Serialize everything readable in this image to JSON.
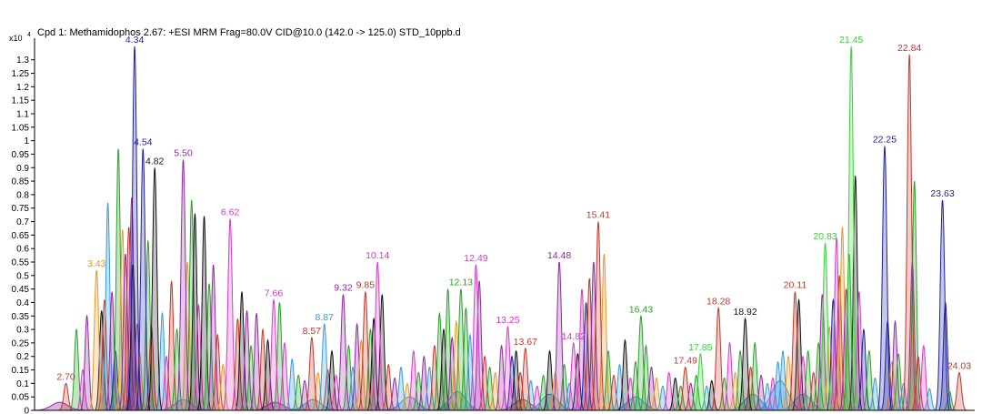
{
  "chart_data": {
    "type": "line",
    "title": "Cpd 1: Methamidophos 2.67: +ESI MRM Frag=80.0V CID@10.0 (142.0 -> 125.0) STD_10ppb.d",
    "y_multiplier": "x10",
    "y_multiplier_exp": "4",
    "xlim": [
      1.95,
      24.4
    ],
    "ylim": [
      0,
      1.38
    ],
    "x_axis_shown": false,
    "grid": false,
    "legend": "none",
    "y_ticks": [
      0,
      0.05,
      0.1,
      0.15,
      0.2,
      0.25,
      0.3,
      0.35,
      0.4,
      0.45,
      0.5,
      0.55,
      0.6,
      0.65,
      0.7,
      0.75,
      0.8,
      0.85,
      0.9,
      0.95,
      1,
      1.05,
      1.1,
      1.15,
      1.2,
      1.25,
      1.3
    ],
    "y_tick_labels": [
      "0",
      "0.05",
      "0.1",
      "0.15",
      "0.2",
      "0.25",
      "0.3",
      "0.35",
      "0.4",
      "0.45",
      "0.5",
      "0.55",
      "0.6",
      "0.65",
      "0.7",
      "0.75",
      "0.8",
      "0.85",
      "0.9",
      "0.95",
      "1",
      "1.05",
      "1.1",
      "1.15",
      "1.2",
      "1.25",
      "1.3"
    ],
    "labeled_peaks": [
      {
        "label": "2.70",
        "x": 2.7,
        "y": 0.1,
        "color": "#c0392b"
      },
      {
        "label": "3.43",
        "x": 3.43,
        "y": 0.52,
        "color": "#e69a2e"
      },
      {
        "label": "4.34",
        "x": 4.34,
        "y": 1.35,
        "color": "#1f1fa0"
      },
      {
        "label": "4.54",
        "x": 4.54,
        "y": 0.97,
        "color": "#1f1fa0"
      },
      {
        "label": "4.82",
        "x": 4.82,
        "y": 0.9,
        "color": "#111111"
      },
      {
        "label": "5.50",
        "x": 5.5,
        "y": 0.93,
        "color": "#8e2c9e"
      },
      {
        "label": "6.62",
        "x": 6.62,
        "y": 0.71,
        "color": "#d63cc7"
      },
      {
        "label": "7.66",
        "x": 7.66,
        "y": 0.41,
        "color": "#d63cc7"
      },
      {
        "label": "8.57",
        "x": 8.57,
        "y": 0.27,
        "color": "#c0392b"
      },
      {
        "label": "8.87",
        "x": 8.87,
        "y": 0.32,
        "color": "#3a9ad9"
      },
      {
        "label": "9.32",
        "x": 9.32,
        "y": 0.43,
        "color": "#8e2c9e"
      },
      {
        "label": "9.85",
        "x": 9.85,
        "y": 0.44,
        "color": "#c0392b"
      },
      {
        "label": "10.14",
        "x": 10.14,
        "y": 0.55,
        "color": "#d63cc7"
      },
      {
        "label": "12.13",
        "x": 12.13,
        "y": 0.45,
        "color": "#2ca02c"
      },
      {
        "label": "12.49",
        "x": 12.49,
        "y": 0.54,
        "color": "#d63cc7"
      },
      {
        "label": "13.25",
        "x": 13.25,
        "y": 0.31,
        "color": "#d63cc7"
      },
      {
        "label": "13.67",
        "x": 13.67,
        "y": 0.23,
        "color": "#c0392b"
      },
      {
        "label": "14.48",
        "x": 14.48,
        "y": 0.55,
        "color": "#8e2c9e"
      },
      {
        "label": "14.82",
        "x": 14.82,
        "y": 0.25,
        "color": "#d63cc7"
      },
      {
        "label": "15.41",
        "x": 15.41,
        "y": 0.7,
        "color": "#c0392b"
      },
      {
        "label": "16.43",
        "x": 16.43,
        "y": 0.35,
        "color": "#2ca02c"
      },
      {
        "label": "17.49",
        "x": 17.49,
        "y": 0.16,
        "color": "#c0392b"
      },
      {
        "label": "17.85",
        "x": 17.85,
        "y": 0.21,
        "color": "#3cd13c"
      },
      {
        "label": "18.28",
        "x": 18.28,
        "y": 0.38,
        "color": "#c0392b"
      },
      {
        "label": "18.92",
        "x": 18.92,
        "y": 0.34,
        "color": "#111111"
      },
      {
        "label": "20.11",
        "x": 20.11,
        "y": 0.44,
        "color": "#c0392b"
      },
      {
        "label": "20.83",
        "x": 20.83,
        "y": 0.62,
        "color": "#3cd13c"
      },
      {
        "label": "21.45",
        "x": 21.45,
        "y": 1.35,
        "color": "#3cd13c"
      },
      {
        "label": "22.25",
        "x": 22.25,
        "y": 0.98,
        "color": "#1f1fa0"
      },
      {
        "label": "22.84",
        "x": 22.84,
        "y": 1.32,
        "color": "#c0392b"
      },
      {
        "label": "23.63",
        "x": 23.63,
        "y": 0.78,
        "color": "#1f1fa0"
      },
      {
        "label": "24.03",
        "x": 24.03,
        "y": 0.14,
        "color": "#c0392b"
      }
    ],
    "unlabeled_peaks": [
      {
        "x": 2.95,
        "y": 0.3,
        "color": "#2ca02c"
      },
      {
        "x": 3.1,
        "y": 0.15,
        "color": "#d63cc7"
      },
      {
        "x": 3.2,
        "y": 0.35,
        "color": "#8e2c9e"
      },
      {
        "x": 3.55,
        "y": 0.37,
        "color": "#111111"
      },
      {
        "x": 3.62,
        "y": 0.41,
        "color": "#c0392b"
      },
      {
        "x": 3.7,
        "y": 0.77,
        "color": "#3a9ad9"
      },
      {
        "x": 3.8,
        "y": 0.44,
        "color": "#8e2c9e"
      },
      {
        "x": 3.88,
        "y": 0.22,
        "color": "#1f1fa0"
      },
      {
        "x": 3.95,
        "y": 0.97,
        "color": "#2ca02c"
      },
      {
        "x": 4.05,
        "y": 0.67,
        "color": "#e69a2e"
      },
      {
        "x": 4.12,
        "y": 0.58,
        "color": "#8e2c9e"
      },
      {
        "x": 4.2,
        "y": 0.68,
        "color": "#c0392b"
      },
      {
        "x": 4.27,
        "y": 0.79,
        "color": "#8e2c9e"
      },
      {
        "x": 4.3,
        "y": 0.54,
        "color": "#111111"
      },
      {
        "x": 4.4,
        "y": 0.32,
        "color": "#d63cc7"
      },
      {
        "x": 4.46,
        "y": 0.21,
        "color": "#e69a2e"
      },
      {
        "x": 4.66,
        "y": 0.63,
        "color": "#2ca02c"
      },
      {
        "x": 4.74,
        "y": 0.31,
        "color": "#c0392b"
      },
      {
        "x": 5.0,
        "y": 0.36,
        "color": "#3a9ad9"
      },
      {
        "x": 5.1,
        "y": 0.2,
        "color": "#d63cc7"
      },
      {
        "x": 5.22,
        "y": 0.48,
        "color": "#c0392b"
      },
      {
        "x": 5.35,
        "y": 0.3,
        "color": "#2ca02c"
      },
      {
        "x": 5.6,
        "y": 0.55,
        "color": "#e69a2e"
      },
      {
        "x": 5.7,
        "y": 0.78,
        "color": "#2ca02c"
      },
      {
        "x": 5.78,
        "y": 0.73,
        "color": "#111111"
      },
      {
        "x": 5.87,
        "y": 0.39,
        "color": "#d63cc7"
      },
      {
        "x": 6.0,
        "y": 0.72,
        "color": "#111111"
      },
      {
        "x": 6.12,
        "y": 0.47,
        "color": "#2ca02c"
      },
      {
        "x": 6.22,
        "y": 0.54,
        "color": "#8e2c9e"
      },
      {
        "x": 6.32,
        "y": 0.28,
        "color": "#c0392b"
      },
      {
        "x": 6.45,
        "y": 0.17,
        "color": "#e69a2e"
      },
      {
        "x": 6.8,
        "y": 0.34,
        "color": "#c0392b"
      },
      {
        "x": 6.9,
        "y": 0.44,
        "color": "#111111"
      },
      {
        "x": 7.02,
        "y": 0.37,
        "color": "#8e2c9e"
      },
      {
        "x": 7.12,
        "y": 0.24,
        "color": "#2ca02c"
      },
      {
        "x": 7.25,
        "y": 0.36,
        "color": "#8e2c9e"
      },
      {
        "x": 7.4,
        "y": 0.3,
        "color": "#c0392b"
      },
      {
        "x": 7.52,
        "y": 0.26,
        "color": "#111111"
      },
      {
        "x": 7.8,
        "y": 0.4,
        "color": "#2ca02c"
      },
      {
        "x": 7.92,
        "y": 0.25,
        "color": "#d63cc7"
      },
      {
        "x": 8.1,
        "y": 0.19,
        "color": "#3a9ad9"
      },
      {
        "x": 8.25,
        "y": 0.13,
        "color": "#2ca02c"
      },
      {
        "x": 8.4,
        "y": 0.11,
        "color": "#8e2c9e"
      },
      {
        "x": 8.72,
        "y": 0.14,
        "color": "#e69a2e"
      },
      {
        "x": 8.95,
        "y": 0.15,
        "color": "#c0392b"
      },
      {
        "x": 9.05,
        "y": 0.22,
        "color": "#111111"
      },
      {
        "x": 9.15,
        "y": 0.13,
        "color": "#d63cc7"
      },
      {
        "x": 9.45,
        "y": 0.24,
        "color": "#2ca02c"
      },
      {
        "x": 9.55,
        "y": 0.16,
        "color": "#3a9ad9"
      },
      {
        "x": 9.65,
        "y": 0.32,
        "color": "#8e2c9e"
      },
      {
        "x": 9.75,
        "y": 0.26,
        "color": "#e69a2e"
      },
      {
        "x": 9.97,
        "y": 0.3,
        "color": "#2ca02c"
      },
      {
        "x": 10.05,
        "y": 0.34,
        "color": "#111111"
      },
      {
        "x": 10.25,
        "y": 0.43,
        "color": "#111111"
      },
      {
        "x": 10.4,
        "y": 0.17,
        "color": "#c0392b"
      },
      {
        "x": 10.55,
        "y": 0.12,
        "color": "#8e2c9e"
      },
      {
        "x": 10.7,
        "y": 0.16,
        "color": "#3a9ad9"
      },
      {
        "x": 10.85,
        "y": 0.1,
        "color": "#e69a2e"
      },
      {
        "x": 11.0,
        "y": 0.22,
        "color": "#d63cc7"
      },
      {
        "x": 11.12,
        "y": 0.14,
        "color": "#2ca02c"
      },
      {
        "x": 11.25,
        "y": 0.2,
        "color": "#8e2c9e"
      },
      {
        "x": 11.38,
        "y": 0.16,
        "color": "#3a9ad9"
      },
      {
        "x": 11.5,
        "y": 0.24,
        "color": "#c0392b"
      },
      {
        "x": 11.62,
        "y": 0.36,
        "color": "#2ca02c"
      },
      {
        "x": 11.72,
        "y": 0.3,
        "color": "#111111"
      },
      {
        "x": 11.82,
        "y": 0.45,
        "color": "#2ca02c"
      },
      {
        "x": 11.92,
        "y": 0.27,
        "color": "#8e2c9e"
      },
      {
        "x": 12.02,
        "y": 0.33,
        "color": "#e69a2e"
      },
      {
        "x": 12.25,
        "y": 0.38,
        "color": "#2ca02c"
      },
      {
        "x": 12.35,
        "y": 0.28,
        "color": "#3a9ad9"
      },
      {
        "x": 12.57,
        "y": 0.48,
        "color": "#8e2c9e"
      },
      {
        "x": 12.7,
        "y": 0.2,
        "color": "#c0392b"
      },
      {
        "x": 12.82,
        "y": 0.16,
        "color": "#2ca02c"
      },
      {
        "x": 12.95,
        "y": 0.14,
        "color": "#e69a2e"
      },
      {
        "x": 13.1,
        "y": 0.24,
        "color": "#8e2c9e"
      },
      {
        "x": 13.35,
        "y": 0.2,
        "color": "#1f1fa0"
      },
      {
        "x": 13.45,
        "y": 0.22,
        "color": "#111111"
      },
      {
        "x": 13.55,
        "y": 0.14,
        "color": "#c0392b"
      },
      {
        "x": 13.8,
        "y": 0.11,
        "color": "#3a9ad9"
      },
      {
        "x": 13.95,
        "y": 0.09,
        "color": "#d63cc7"
      },
      {
        "x": 14.1,
        "y": 0.13,
        "color": "#2ca02c"
      },
      {
        "x": 14.25,
        "y": 0.22,
        "color": "#111111"
      },
      {
        "x": 14.38,
        "y": 0.14,
        "color": "#e69a2e"
      },
      {
        "x": 14.6,
        "y": 0.17,
        "color": "#2ca02c"
      },
      {
        "x": 14.72,
        "y": 0.1,
        "color": "#3a9ad9"
      },
      {
        "x": 14.92,
        "y": 0.21,
        "color": "#111111"
      },
      {
        "x": 15.02,
        "y": 0.45,
        "color": "#d63cc7"
      },
      {
        "x": 15.12,
        "y": 0.4,
        "color": "#1f1fa0"
      },
      {
        "x": 15.2,
        "y": 0.49,
        "color": "#c0392b"
      },
      {
        "x": 15.3,
        "y": 0.55,
        "color": "#8e2c9e"
      },
      {
        "x": 15.55,
        "y": 0.58,
        "color": "#e69a2e"
      },
      {
        "x": 15.65,
        "y": 0.22,
        "color": "#2ca02c"
      },
      {
        "x": 15.78,
        "y": 0.13,
        "color": "#c0392b"
      },
      {
        "x": 15.92,
        "y": 0.17,
        "color": "#3a9ad9"
      },
      {
        "x": 16.05,
        "y": 0.26,
        "color": "#111111"
      },
      {
        "x": 16.18,
        "y": 0.12,
        "color": "#d63cc7"
      },
      {
        "x": 16.3,
        "y": 0.18,
        "color": "#2ca02c"
      },
      {
        "x": 16.55,
        "y": 0.24,
        "color": "#2ca02c"
      },
      {
        "x": 16.68,
        "y": 0.16,
        "color": "#8e2c9e"
      },
      {
        "x": 16.8,
        "y": 0.12,
        "color": "#e69a2e"
      },
      {
        "x": 16.95,
        "y": 0.09,
        "color": "#3a9ad9"
      },
      {
        "x": 17.1,
        "y": 0.14,
        "color": "#d63cc7"
      },
      {
        "x": 17.25,
        "y": 0.12,
        "color": "#111111"
      },
      {
        "x": 17.38,
        "y": 0.09,
        "color": "#2ca02c"
      },
      {
        "x": 17.62,
        "y": 0.1,
        "color": "#8e2c9e"
      },
      {
        "x": 17.75,
        "y": 0.13,
        "color": "#2ca02c"
      },
      {
        "x": 18.0,
        "y": 0.09,
        "color": "#3a9ad9"
      },
      {
        "x": 18.12,
        "y": 0.11,
        "color": "#111111"
      },
      {
        "x": 18.42,
        "y": 0.12,
        "color": "#2ca02c"
      },
      {
        "x": 18.55,
        "y": 0.25,
        "color": "#d63cc7"
      },
      {
        "x": 18.68,
        "y": 0.14,
        "color": "#e69a2e"
      },
      {
        "x": 18.8,
        "y": 0.22,
        "color": "#2ca02c"
      },
      {
        "x": 19.05,
        "y": 0.16,
        "color": "#c0392b"
      },
      {
        "x": 19.15,
        "y": 0.25,
        "color": "#2ca02c"
      },
      {
        "x": 19.3,
        "y": 0.13,
        "color": "#8e2c9e"
      },
      {
        "x": 19.45,
        "y": 0.1,
        "color": "#3a9ad9"
      },
      {
        "x": 19.58,
        "y": 0.12,
        "color": "#d63cc7"
      },
      {
        "x": 19.7,
        "y": 0.18,
        "color": "#3a9ad9"
      },
      {
        "x": 19.82,
        "y": 0.22,
        "color": "#3a9ad9"
      },
      {
        "x": 19.95,
        "y": 0.2,
        "color": "#e69a2e"
      },
      {
        "x": 20.2,
        "y": 0.41,
        "color": "#111111"
      },
      {
        "x": 20.3,
        "y": 0.2,
        "color": "#d63cc7"
      },
      {
        "x": 20.42,
        "y": 0.22,
        "color": "#2ca02c"
      },
      {
        "x": 20.55,
        "y": 0.14,
        "color": "#c0392b"
      },
      {
        "x": 20.67,
        "y": 0.25,
        "color": "#2ca02c"
      },
      {
        "x": 20.76,
        "y": 0.43,
        "color": "#8e2c9e"
      },
      {
        "x": 20.93,
        "y": 0.31,
        "color": "#e69a2e"
      },
      {
        "x": 21.02,
        "y": 0.41,
        "color": "#1f1fa0"
      },
      {
        "x": 21.1,
        "y": 0.64,
        "color": "#d63cc7"
      },
      {
        "x": 21.17,
        "y": 0.5,
        "color": "#c0392b"
      },
      {
        "x": 21.24,
        "y": 0.68,
        "color": "#e69a2e"
      },
      {
        "x": 21.33,
        "y": 0.45,
        "color": "#8e2c9e"
      },
      {
        "x": 21.4,
        "y": 0.58,
        "color": "#2ca02c"
      },
      {
        "x": 21.55,
        "y": 0.87,
        "color": "#111111"
      },
      {
        "x": 21.64,
        "y": 0.44,
        "color": "#d63cc7"
      },
      {
        "x": 21.75,
        "y": 0.3,
        "color": "#1f1fa0"
      },
      {
        "x": 21.88,
        "y": 0.22,
        "color": "#2ca02c"
      },
      {
        "x": 22.02,
        "y": 0.12,
        "color": "#3a9ad9"
      },
      {
        "x": 22.32,
        "y": 0.33,
        "color": "#1f1fa0"
      },
      {
        "x": 22.42,
        "y": 0.18,
        "color": "#e69a2e"
      },
      {
        "x": 22.5,
        "y": 0.33,
        "color": "#8e2c9e"
      },
      {
        "x": 22.58,
        "y": 0.21,
        "color": "#2ca02c"
      },
      {
        "x": 22.7,
        "y": 0.1,
        "color": "#3a9ad9"
      },
      {
        "x": 22.91,
        "y": 0.55,
        "color": "#8e2c9e"
      },
      {
        "x": 22.96,
        "y": 0.85,
        "color": "#2ca02c"
      },
      {
        "x": 23.05,
        "y": 0.2,
        "color": "#c0392b"
      },
      {
        "x": 23.18,
        "y": 0.24,
        "color": "#d63cc7"
      },
      {
        "x": 23.32,
        "y": 0.08,
        "color": "#3a9ad9"
      },
      {
        "x": 23.7,
        "y": 0.4,
        "color": "#1f1fa0"
      },
      {
        "x": 23.8,
        "y": 0.07,
        "color": "#2ca02c"
      }
    ],
    "baseline_bumps": [
      {
        "x": 2.55,
        "y": 0.03,
        "color": "#8e2c9e"
      },
      {
        "x": 5.5,
        "y": 0.04,
        "color": "#3a9ad9"
      },
      {
        "x": 7.7,
        "y": 0.03,
        "color": "#8e2c9e"
      },
      {
        "x": 8.6,
        "y": 0.04,
        "color": "#3a9ad9"
      },
      {
        "x": 10.9,
        "y": 0.05,
        "color": "#3a9ad9"
      },
      {
        "x": 12.05,
        "y": 0.07,
        "color": "#3a9ad9"
      },
      {
        "x": 13.6,
        "y": 0.04,
        "color": "#2ca02c"
      },
      {
        "x": 14.25,
        "y": 0.06,
        "color": "#3a9ad9"
      },
      {
        "x": 16.3,
        "y": 0.05,
        "color": "#3a9ad9"
      },
      {
        "x": 19.1,
        "y": 0.06,
        "color": "#3a9ad9"
      },
      {
        "x": 19.75,
        "y": 0.11,
        "color": "#3a9ad9"
      },
      {
        "x": 20.3,
        "y": 0.06,
        "color": "#3a9ad9"
      }
    ]
  }
}
